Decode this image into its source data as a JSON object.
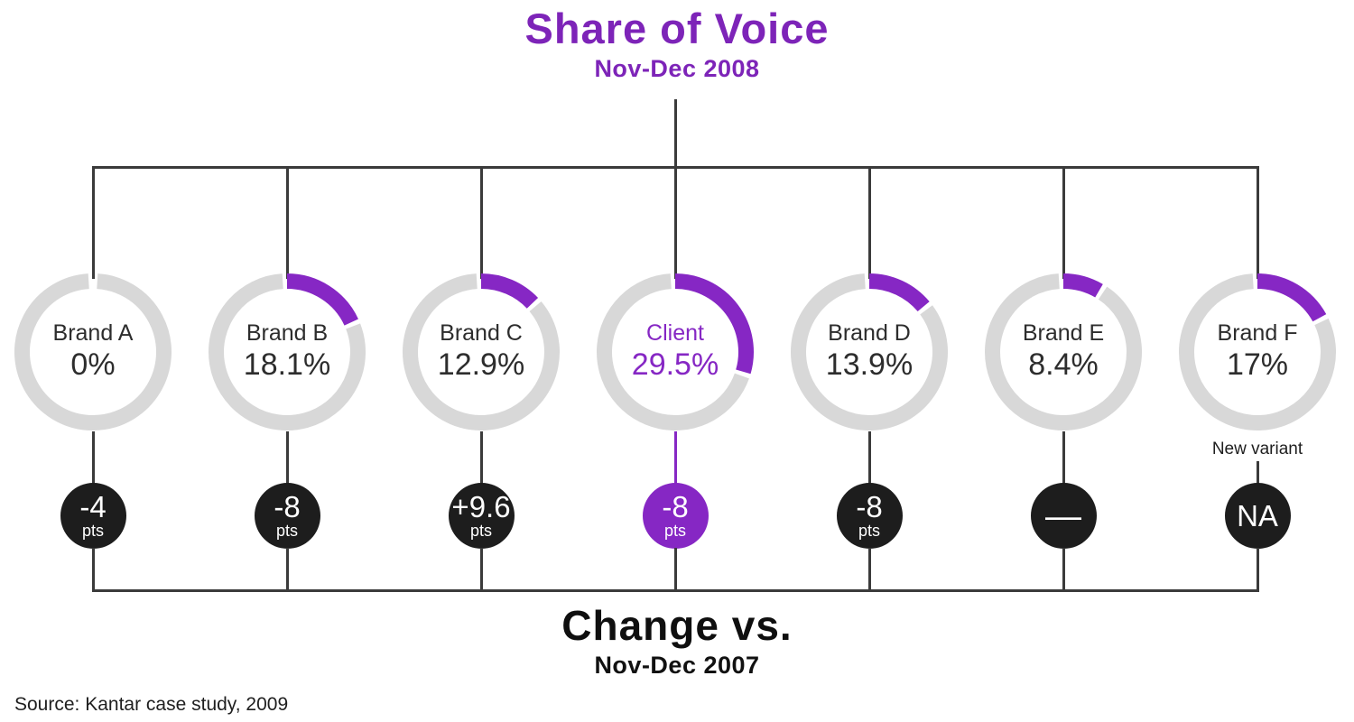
{
  "colors": {
    "accent_purple": "#8627c4",
    "title_purple": "#7d24b8",
    "ring_gray": "#d8d8d8",
    "badge_black": "#1d1d1d",
    "line_dark": "#3b3b3b",
    "text_dark": "#2d2d2d"
  },
  "chart_data": {
    "type": "donut",
    "title": "Share of Voice",
    "subtitle": "Nov-Dec 2008",
    "comparison_label": "Change vs.",
    "comparison_period": "Nov-Dec 2007",
    "source": "Source: Kantar case study, 2009",
    "unit": "%",
    "legend_position": "none",
    "series": [
      {
        "label": "Brand A",
        "share_pct": 0,
        "share_label": "0%",
        "change_label": "-4",
        "change_unit": "pts",
        "highlight": false,
        "note": ""
      },
      {
        "label": "Brand B",
        "share_pct": 18.1,
        "share_label": "18.1%",
        "change_label": "-8",
        "change_unit": "pts",
        "highlight": false,
        "note": ""
      },
      {
        "label": "Brand C",
        "share_pct": 12.9,
        "share_label": "12.9%",
        "change_label": "+9.6",
        "change_unit": "pts",
        "highlight": false,
        "note": ""
      },
      {
        "label": "Client",
        "share_pct": 29.5,
        "share_label": "29.5%",
        "change_label": "-8",
        "change_unit": "pts",
        "highlight": true,
        "note": ""
      },
      {
        "label": "Brand D",
        "share_pct": 13.9,
        "share_label": "13.9%",
        "change_label": "-8",
        "change_unit": "pts",
        "highlight": false,
        "note": ""
      },
      {
        "label": "Brand E",
        "share_pct": 8.4,
        "share_label": "8.4%",
        "change_label": "—",
        "change_unit": "",
        "highlight": false,
        "note": ""
      },
      {
        "label": "Brand F",
        "share_pct": 17,
        "share_label": "17%",
        "change_label": "NA",
        "change_unit": "",
        "highlight": false,
        "note": "New variant"
      }
    ]
  }
}
